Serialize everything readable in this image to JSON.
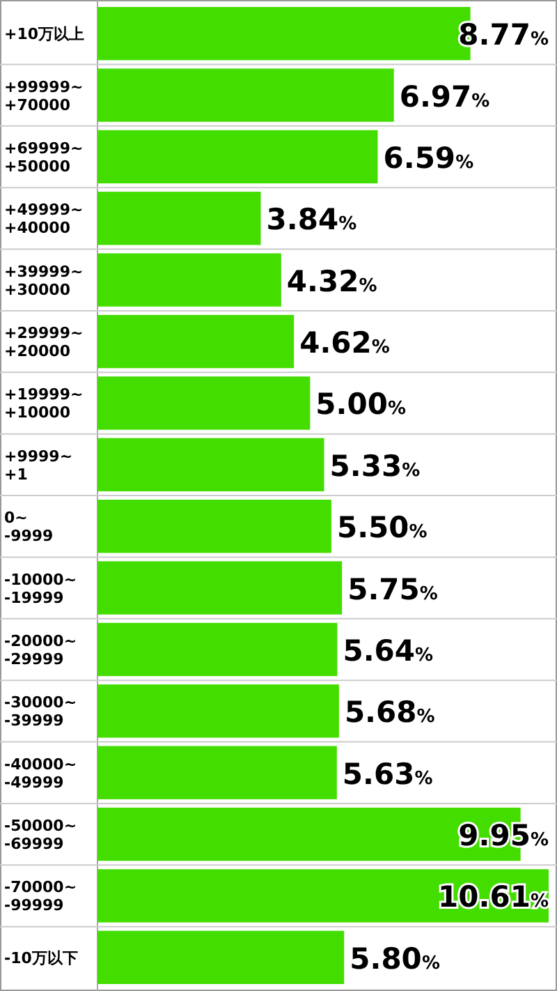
{
  "chart_data": {
    "type": "bar",
    "orientation": "horizontal",
    "categories": [
      "+10万以上",
      "+99999~\n+70000",
      "+69999~\n+50000",
      "+49999~\n+40000",
      "+39999~\n+30000",
      "+29999~\n+20000",
      "+19999~\n+10000",
      "+9999~\n+1",
      "0~\n-9999",
      "-10000~\n-19999",
      "-20000~\n-29999",
      "-30000~\n-39999",
      "-40000~\n-49999",
      "-50000~\n-69999",
      "-70000~\n-99999",
      "-10万以下"
    ],
    "values": [
      8.77,
      6.97,
      6.59,
      3.84,
      4.32,
      4.62,
      5.0,
      5.33,
      5.5,
      5.75,
      5.64,
      5.68,
      5.63,
      9.95,
      10.61,
      5.8
    ],
    "value_labels": [
      "8.77%",
      "6.97%",
      "6.59%",
      "3.84%",
      "4.32%",
      "4.62%",
      "5.00%",
      "5.33%",
      "5.50%",
      "5.75%",
      "5.64%",
      "5.68%",
      "5.63%",
      "9.95%",
      "10.61%",
      "5.80%"
    ],
    "color": "#44dd00"
  }
}
